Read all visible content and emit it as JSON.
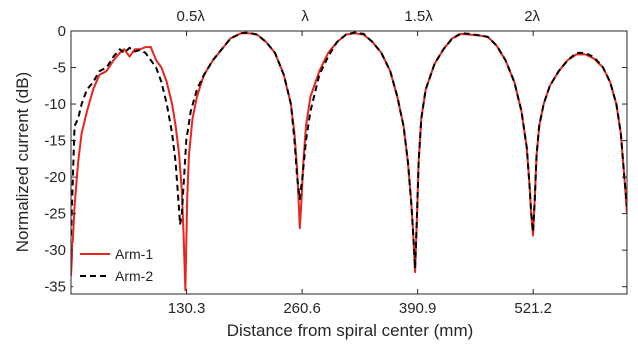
{
  "chart_data": {
    "type": "line",
    "xlabel": "Distance from spiral center (mm)",
    "ylabel": "Normalized current (dB)",
    "xlim": [
      0,
      627
    ],
    "ylim": [
      -36,
      0
    ],
    "xticks": [
      130.3,
      260.6,
      390.9,
      521.2
    ],
    "xtick_labels": [
      "130.3",
      "260.6",
      "390.9",
      "521.2"
    ],
    "yticks": [
      0,
      -5,
      -10,
      -15,
      -20,
      -25,
      -30,
      -35
    ],
    "ytick_labels": [
      "0",
      "-5",
      "-10",
      "-15",
      "-20",
      "-25",
      "-30",
      "-35"
    ],
    "top_labels": [
      {
        "x": 135,
        "text": "0.5λ"
      },
      {
        "x": 264,
        "text": "λ"
      },
      {
        "x": 392,
        "text": "1.5λ"
      },
      {
        "x": 520,
        "text": "2λ"
      }
    ],
    "grid": false,
    "legend_position": "bottom-left",
    "colors": {
      "arm1": "#e8241c",
      "arm2": "#000000",
      "axis": "#262626"
    },
    "series": [
      {
        "name": "Arm-1",
        "style": "solid",
        "x": [
          0,
          4,
          8,
          12,
          18,
          25,
          32,
          40,
          48,
          55,
          60,
          66,
          72,
          78,
          84,
          90,
          96,
          102,
          108,
          114,
          118,
          122,
          125,
          127,
          129,
          131,
          133,
          137,
          142,
          150,
          160,
          170,
          180,
          192,
          200,
          210,
          220,
          230,
          240,
          248,
          252,
          255,
          257,
          258,
          260,
          262,
          265,
          270,
          280,
          290,
          300,
          310,
          320,
          330,
          340,
          350,
          360,
          368,
          375,
          380,
          384,
          386,
          388,
          390,
          392,
          395,
          400,
          410,
          420,
          430,
          440,
          450,
          460,
          470,
          480,
          490,
          500,
          508,
          514,
          517,
          519,
          521,
          523,
          525,
          528,
          533,
          540,
          550,
          560,
          570,
          580,
          590,
          600,
          608,
          615,
          620,
          624,
          627
        ],
        "y": [
          -33.5,
          -24,
          -18,
          -14,
          -11,
          -8,
          -6,
          -5.5,
          -4,
          -3,
          -2.5,
          -3.5,
          -2.5,
          -2.5,
          -2.2,
          -2.2,
          -4,
          -5,
          -7,
          -10,
          -13,
          -17,
          -22,
          -28,
          -35.5,
          -23,
          -17,
          -12,
          -9,
          -6,
          -4,
          -2.5,
          -1,
          -0.3,
          -0.3,
          -0.5,
          -1.5,
          -3,
          -6,
          -10,
          -14,
          -19,
          -24,
          -27,
          -23,
          -18,
          -13,
          -9,
          -5.5,
          -3,
          -1.5,
          -0.5,
          -0.3,
          -0.5,
          -1.5,
          -3,
          -5.5,
          -9,
          -13,
          -18,
          -24,
          -28,
          -33,
          -26,
          -18,
          -12,
          -8,
          -4.5,
          -2.5,
          -1,
          -0.4,
          -0.5,
          -0.6,
          -0.8,
          -2,
          -4,
          -7,
          -11,
          -16,
          -21,
          -25,
          -28,
          -23,
          -17,
          -13,
          -10,
          -7.5,
          -5.5,
          -4,
          -3.2,
          -3.2,
          -3.8,
          -5,
          -7,
          -10,
          -14,
          -20,
          -25
        ]
      },
      {
        "name": "Arm-2",
        "style": "dashed",
        "x": [
          0,
          4,
          8,
          12,
          18,
          25,
          32,
          40,
          48,
          55,
          60,
          66,
          72,
          78,
          84,
          90,
          96,
          102,
          108,
          114,
          118,
          121,
          123,
          125,
          127,
          130,
          135,
          142,
          150,
          160,
          170,
          180,
          192,
          200,
          210,
          220,
          230,
          240,
          248,
          252,
          255,
          258,
          261,
          265,
          270,
          280,
          290,
          300,
          310,
          320,
          330,
          340,
          350,
          360,
          368,
          375,
          380,
          384,
          386,
          388,
          390,
          392,
          395,
          400,
          410,
          420,
          430,
          440,
          450,
          460,
          470,
          480,
          490,
          500,
          508,
          514,
          517,
          519,
          521,
          523,
          525,
          528,
          533,
          540,
          550,
          560,
          570,
          580,
          590,
          600,
          608,
          615,
          620,
          624,
          627
        ],
        "y": [
          -28,
          -13,
          -12,
          -10,
          -8,
          -7,
          -5.5,
          -5,
          -3.5,
          -2.5,
          -3,
          -2.3,
          -2.8,
          -2.6,
          -3,
          -4,
          -5,
          -7,
          -10,
          -14,
          -18,
          -23,
          -26.5,
          -25,
          -21,
          -15,
          -11,
          -8,
          -6,
          -4,
          -2.5,
          -1,
          -0.3,
          -0.2,
          -0.5,
          -1.5,
          -3,
          -6,
          -10,
          -15,
          -20,
          -23,
          -20,
          -15,
          -11,
          -6,
          -3.5,
          -1.5,
          -0.5,
          -0.2,
          -0.4,
          -1.5,
          -3,
          -5.5,
          -9,
          -13,
          -18,
          -24,
          -28,
          -32.5,
          -26,
          -18,
          -12,
          -8,
          -4.5,
          -2.5,
          -1,
          -0.3,
          -0.4,
          -0.6,
          -0.8,
          -2,
          -4,
          -7,
          -11,
          -16,
          -21,
          -25,
          -27.5,
          -23,
          -17,
          -13,
          -10,
          -7.5,
          -5.5,
          -4,
          -3,
          -3,
          -3.6,
          -5,
          -7,
          -10,
          -14,
          -20,
          -24
        ]
      }
    ]
  }
}
